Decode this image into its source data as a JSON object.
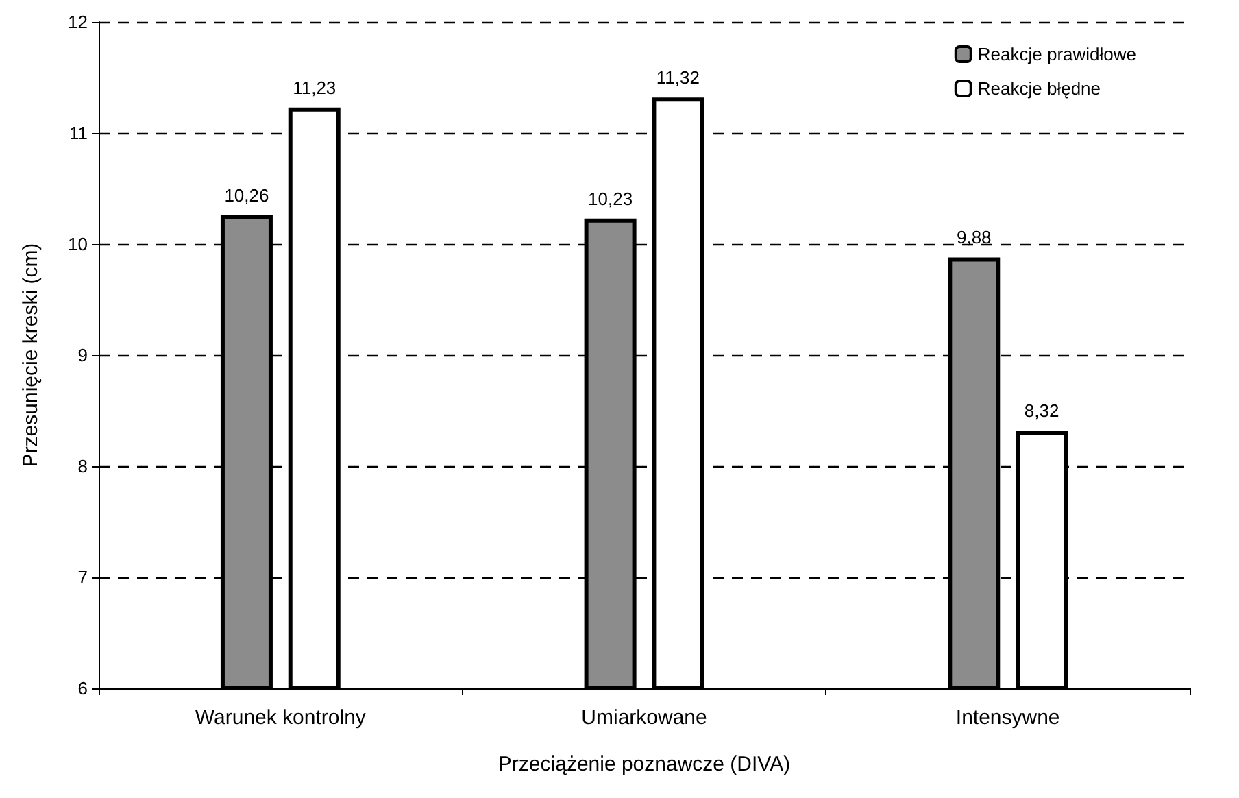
{
  "chart_data": {
    "type": "bar",
    "xlabel": "Przeciążenie poznawcze (DIVA)",
    "ylabel": "Przesunięcie kreski (cm)",
    "categories": [
      "Warunek kontrolny",
      "Umiarkowane",
      "Intensywne"
    ],
    "series": [
      {
        "name": "Reakcje prawidłowe",
        "color": "#8c8c8c",
        "values": [
          10.26,
          10.23,
          9.88
        ],
        "value_labels": [
          "10,26",
          "10,23",
          "9,88"
        ]
      },
      {
        "name": "Reakcje błędne",
        "color": "#ffffff",
        "values": [
          11.23,
          11.32,
          8.32
        ],
        "value_labels": [
          "11,23",
          "11,32",
          "8,32"
        ]
      }
    ],
    "ylim": [
      6,
      12
    ],
    "yticks": [
      6,
      7,
      8,
      9,
      10,
      11,
      12
    ],
    "grid": "y",
    "legend": "top right"
  }
}
